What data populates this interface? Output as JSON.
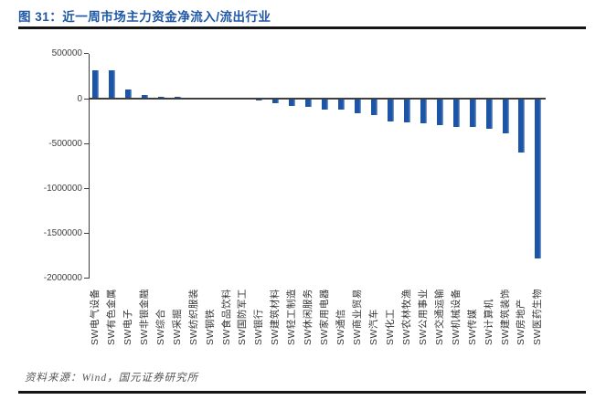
{
  "page": {
    "title": "图 31：近一周市场主力资金净流入/流出行业",
    "source": "资料来源：Wind，国元证券研究所"
  },
  "chart_data": {
    "type": "bar",
    "title": "近一周市场主力资金净流入/流出行业",
    "categories": [
      "SW电气设备",
      "SW有色金属",
      "SW电子",
      "SW非银金融",
      "SW综合",
      "SW采掘",
      "SW纺织服装",
      "SW钢铁",
      "SW食品饮料",
      "SW国防军工",
      "SW银行",
      "SW建筑材料",
      "SW轻工制造",
      "SW休闲服务",
      "SW家用电器",
      "SW通信",
      "SW商业贸易",
      "SW汽车",
      "SW化工",
      "SW农林牧渔",
      "SW公用事业",
      "SW交通运输",
      "SW机械设备",
      "SW传媒",
      "SW计算机",
      "SW建筑装饰",
      "SW房地产",
      "SW医药生物"
    ],
    "values": [
      320000,
      315000,
      100000,
      40000,
      25000,
      20000,
      15000,
      8000,
      -5000,
      -12000,
      -22000,
      -50000,
      -85000,
      -90000,
      -120000,
      -125000,
      -165000,
      -180000,
      -255000,
      -265000,
      -272000,
      -290000,
      -315000,
      -320000,
      -340000,
      -385000,
      -600000,
      -1780000
    ],
    "xlabel": "",
    "ylabel": "",
    "ylim": [
      -2000000,
      500000
    ],
    "yticks": [
      500000,
      0,
      -500000,
      -1000000,
      -1500000,
      -2000000
    ],
    "grid": false,
    "legend_position": "none",
    "bar_color": "#1D55A6",
    "bar_edge_light": "#8AA7D6",
    "axis_color": "#3F3F3F",
    "title_color": "#1F57A5"
  }
}
